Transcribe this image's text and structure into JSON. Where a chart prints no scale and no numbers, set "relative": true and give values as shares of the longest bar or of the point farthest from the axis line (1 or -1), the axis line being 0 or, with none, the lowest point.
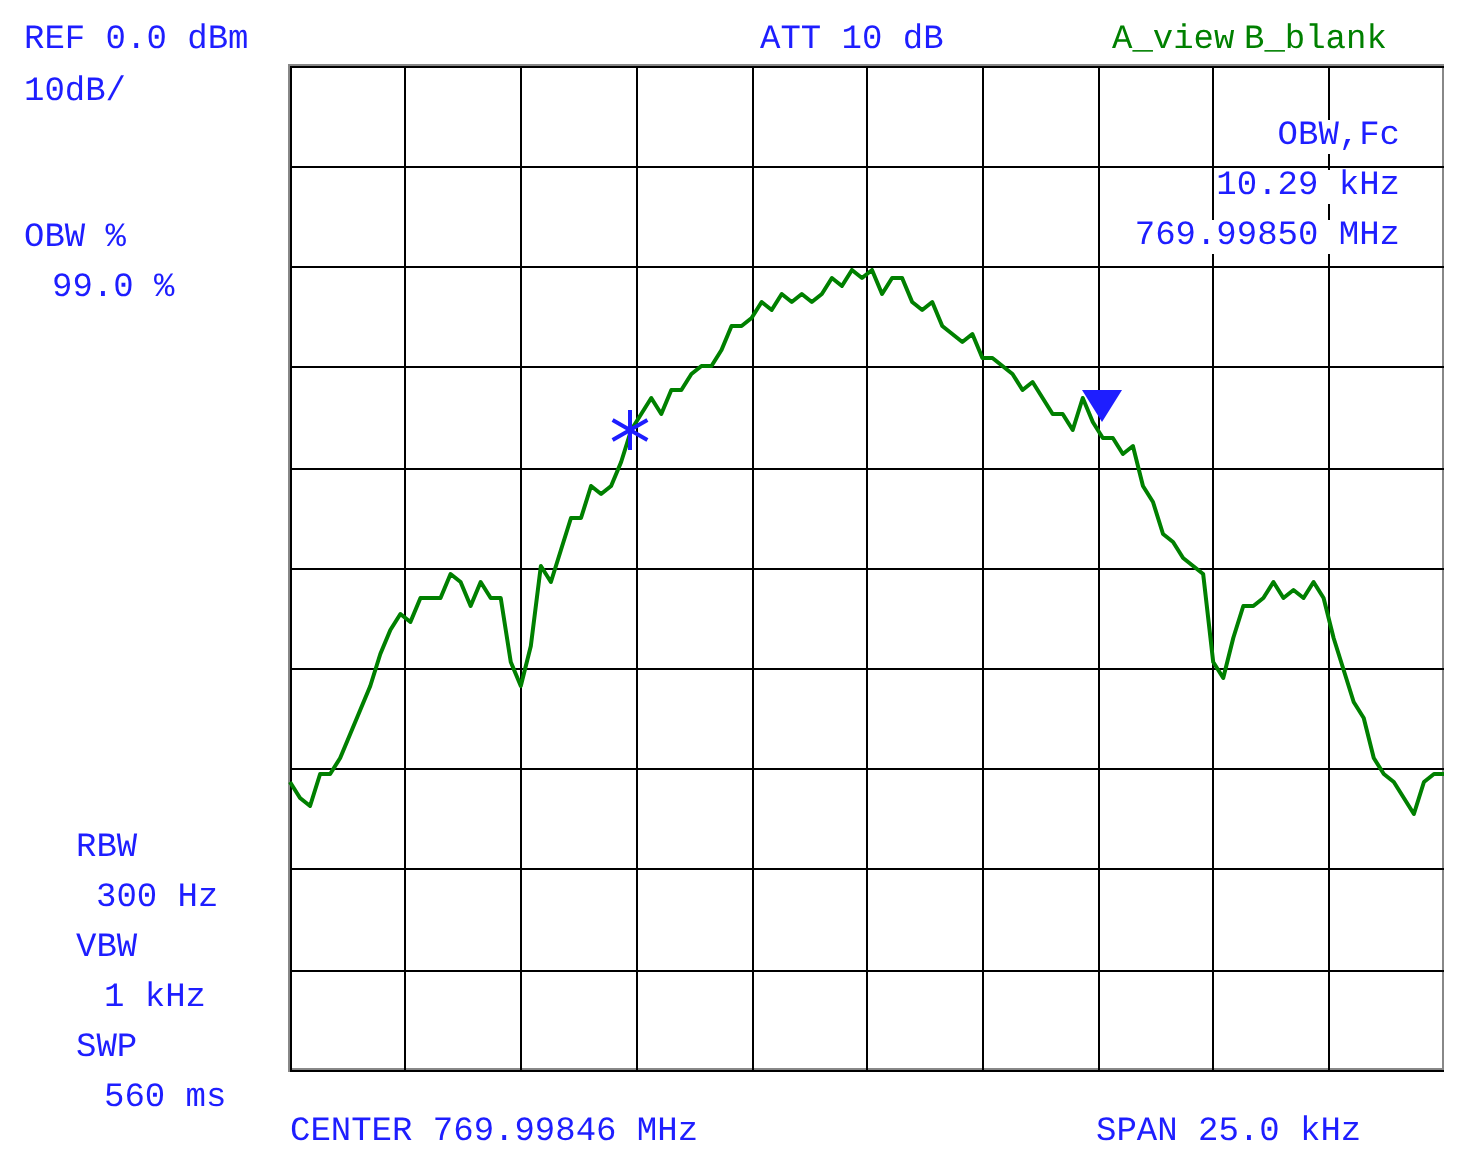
{
  "chart_data": {
    "type": "line",
    "relative": true,
    "grid": true,
    "categories": [
      null,
      null,
      null,
      null,
      null,
      null,
      null,
      null,
      null,
      null,
      null,
      null,
      null,
      null,
      null,
      null,
      null,
      null,
      null,
      null,
      null,
      null,
      null,
      null,
      null,
      null,
      null,
      null,
      null,
      null,
      null,
      null,
      null,
      null,
      null,
      null,
      null,
      null,
      null,
      null,
      null,
      null,
      null,
      null,
      null,
      null,
      null,
      null,
      null,
      null,
      null,
      null,
      null,
      null,
      null,
      null,
      null,
      null,
      null,
      null,
      null,
      null,
      null,
      null,
      null,
      null,
      null,
      null,
      null,
      null,
      null,
      null,
      null,
      null,
      null,
      null,
      null,
      null,
      null,
      null,
      null,
      null,
      null,
      null,
      null,
      null,
      null,
      null,
      null,
      null,
      null,
      null,
      null,
      null,
      null,
      null,
      null,
      null,
      null,
      null,
      null,
      null,
      null,
      null,
      null,
      null,
      null,
      null,
      null,
      null,
      null,
      null,
      null,
      null,
      null,
      null
    ],
    "series": [
      {
        "color": "#008000",
        "line_style": "solid",
        "values": [
          0.36,
          0.34,
          0.33,
          0.37,
          0.37,
          0.39,
          0.42,
          0.45,
          0.48,
          0.52,
          0.55,
          0.57,
          0.56,
          0.59,
          0.59,
          0.59,
          0.62,
          0.61,
          0.58,
          0.61,
          0.59,
          0.59,
          0.51,
          0.48,
          0.53,
          0.63,
          0.61,
          0.65,
          0.69,
          0.69,
          0.73,
          0.72,
          0.73,
          0.76,
          0.8,
          0.82,
          0.84,
          0.82,
          0.85,
          0.85,
          0.87,
          0.88,
          0.88,
          0.9,
          0.93,
          0.93,
          0.94,
          0.96,
          0.95,
          0.97,
          0.96,
          0.97,
          0.96,
          0.97,
          0.99,
          0.98,
          1.0,
          0.99,
          1.0,
          0.97,
          0.99,
          0.99,
          0.96,
          0.95,
          0.96,
          0.93,
          0.92,
          0.91,
          0.92,
          0.89,
          0.89,
          0.88,
          0.87,
          0.85,
          0.86,
          0.84,
          0.82,
          0.82,
          0.8,
          0.84,
          0.81,
          0.79,
          0.79,
          0.77,
          0.78,
          0.73,
          0.71,
          0.67,
          0.66,
          0.64,
          0.63,
          0.62,
          0.51,
          0.49,
          0.54,
          0.58,
          0.58,
          0.59,
          0.61,
          0.59,
          0.6,
          0.59,
          0.61,
          0.59,
          0.54,
          0.5,
          0.46,
          0.44,
          0.39,
          0.37,
          0.36,
          0.34,
          0.32,
          0.36,
          0.37,
          0.37
        ]
      }
    ],
    "annotations": [
      "REF 0.0 dBm",
      "10dB/",
      "ATT 10 dB",
      "A_view",
      "B_blank",
      "OBW,Fc",
      "10.29 kHz",
      "769.99850 MHz",
      "OBW %",
      "99.0 %",
      "RBW",
      "300 Hz",
      "VBW",
      "1 kHz",
      "SWP",
      "560 ms",
      "CENTER 769.99846 MHz",
      "SPAN 25.0 kHz"
    ]
  }
}
